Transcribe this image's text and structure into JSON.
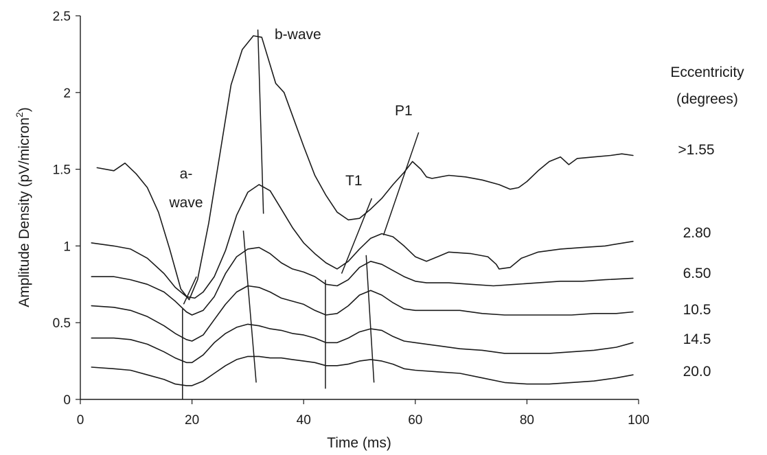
{
  "chart_data": {
    "type": "line",
    "xlabel": "Time (ms)",
    "ylabel_main": "Amplitude Density (pV/micron",
    "ylabel_sup": "2",
    "ylabel_end": ")",
    "xlim": [
      0,
      100
    ],
    "ylim": [
      0,
      2.5
    ],
    "x_ticks": [
      0,
      20,
      40,
      60,
      80,
      100
    ],
    "x_tick_labels": [
      "0",
      "20",
      "40",
      "60",
      "80",
      "100"
    ],
    "y_ticks": [
      0,
      0.5,
      1,
      1.5,
      2,
      2.5
    ],
    "y_tick_labels": [
      "0",
      "0.5",
      "1",
      "1.5",
      "2",
      "2.5"
    ],
    "grid": false,
    "legend_title": [
      "Eccentricity",
      "(degrees)"
    ],
    "annotations": {
      "a_wave": [
        "a-",
        "wave"
      ],
      "b_wave": "b-wave",
      "t1": "T1",
      "p1": "P1"
    },
    "series": [
      {
        "name": ">1.55",
        "points": [
          [
            3,
            1.51
          ],
          [
            6,
            1.49
          ],
          [
            8,
            1.54
          ],
          [
            10,
            1.47
          ],
          [
            12,
            1.38
          ],
          [
            14,
            1.22
          ],
          [
            16,
            0.98
          ],
          [
            18,
            0.72
          ],
          [
            19.5,
            0.65
          ],
          [
            21,
            0.78
          ],
          [
            23,
            1.15
          ],
          [
            25,
            1.6
          ],
          [
            27,
            2.05
          ],
          [
            29,
            2.28
          ],
          [
            31,
            2.37
          ],
          [
            32.5,
            2.36
          ],
          [
            34,
            2.18
          ],
          [
            35,
            2.06
          ],
          [
            36.5,
            2.0
          ],
          [
            38,
            1.85
          ],
          [
            40,
            1.65
          ],
          [
            42,
            1.46
          ],
          [
            44,
            1.33
          ],
          [
            46,
            1.22
          ],
          [
            48,
            1.17
          ],
          [
            50,
            1.18
          ],
          [
            52,
            1.24
          ],
          [
            54,
            1.31
          ],
          [
            56,
            1.4
          ],
          [
            58,
            1.48
          ],
          [
            59.5,
            1.55
          ],
          [
            61,
            1.5
          ],
          [
            62,
            1.45
          ],
          [
            63,
            1.44
          ],
          [
            66,
            1.46
          ],
          [
            69,
            1.45
          ],
          [
            72,
            1.43
          ],
          [
            75,
            1.4
          ],
          [
            77,
            1.37
          ],
          [
            78.5,
            1.38
          ],
          [
            80,
            1.42
          ],
          [
            82,
            1.49
          ],
          [
            84,
            1.55
          ],
          [
            86,
            1.58
          ],
          [
            87.5,
            1.53
          ],
          [
            89,
            1.57
          ],
          [
            92,
            1.58
          ],
          [
            95,
            1.59
          ],
          [
            97,
            1.6
          ],
          [
            99,
            1.59
          ]
        ]
      },
      {
        "name": "2.80",
        "points": [
          [
            2,
            1.02
          ],
          [
            6,
            1.0
          ],
          [
            9,
            0.98
          ],
          [
            12,
            0.92
          ],
          [
            15,
            0.82
          ],
          [
            17,
            0.73
          ],
          [
            19,
            0.67
          ],
          [
            20.5,
            0.66
          ],
          [
            22,
            0.7
          ],
          [
            24,
            0.8
          ],
          [
            26,
            0.97
          ],
          [
            28,
            1.2
          ],
          [
            30,
            1.35
          ],
          [
            32,
            1.4
          ],
          [
            34,
            1.36
          ],
          [
            36,
            1.24
          ],
          [
            38,
            1.12
          ],
          [
            40,
            1.02
          ],
          [
            42,
            0.95
          ],
          [
            44,
            0.89
          ],
          [
            46,
            0.85
          ],
          [
            48,
            0.9
          ],
          [
            50,
            0.98
          ],
          [
            52,
            1.05
          ],
          [
            54,
            1.08
          ],
          [
            56,
            1.06
          ],
          [
            58,
            1.0
          ],
          [
            60,
            0.93
          ],
          [
            62,
            0.9
          ],
          [
            64,
            0.93
          ],
          [
            66,
            0.96
          ],
          [
            70,
            0.95
          ],
          [
            73,
            0.93
          ],
          [
            74.5,
            0.88
          ],
          [
            75,
            0.85
          ],
          [
            77,
            0.86
          ],
          [
            79,
            0.92
          ],
          [
            82,
            0.96
          ],
          [
            86,
            0.98
          ],
          [
            90,
            0.99
          ],
          [
            94,
            1.0
          ],
          [
            99,
            1.03
          ]
        ]
      },
      {
        "name": "6.50",
        "points": [
          [
            2,
            0.8
          ],
          [
            6,
            0.8
          ],
          [
            9,
            0.78
          ],
          [
            12,
            0.75
          ],
          [
            15,
            0.7
          ],
          [
            17,
            0.64
          ],
          [
            19,
            0.57
          ],
          [
            20,
            0.55
          ],
          [
            22,
            0.58
          ],
          [
            24,
            0.67
          ],
          [
            26,
            0.82
          ],
          [
            28,
            0.93
          ],
          [
            30,
            0.98
          ],
          [
            32,
            0.99
          ],
          [
            34,
            0.95
          ],
          [
            36,
            0.89
          ],
          [
            38,
            0.85
          ],
          [
            40,
            0.83
          ],
          [
            42,
            0.8
          ],
          [
            44,
            0.75
          ],
          [
            46,
            0.74
          ],
          [
            48,
            0.78
          ],
          [
            50,
            0.86
          ],
          [
            52,
            0.9
          ],
          [
            54,
            0.88
          ],
          [
            56,
            0.84
          ],
          [
            58,
            0.8
          ],
          [
            60,
            0.77
          ],
          [
            62,
            0.76
          ],
          [
            66,
            0.76
          ],
          [
            70,
            0.75
          ],
          [
            74,
            0.74
          ],
          [
            78,
            0.75
          ],
          [
            82,
            0.76
          ],
          [
            86,
            0.77
          ],
          [
            90,
            0.77
          ],
          [
            94,
            0.78
          ],
          [
            99,
            0.79
          ]
        ]
      },
      {
        "name": "10.5",
        "points": [
          [
            2,
            0.61
          ],
          [
            6,
            0.6
          ],
          [
            9,
            0.58
          ],
          [
            12,
            0.54
          ],
          [
            15,
            0.48
          ],
          [
            17,
            0.43
          ],
          [
            19,
            0.39
          ],
          [
            20,
            0.38
          ],
          [
            22,
            0.42
          ],
          [
            24,
            0.52
          ],
          [
            26,
            0.62
          ],
          [
            28,
            0.7
          ],
          [
            30,
            0.74
          ],
          [
            32,
            0.73
          ],
          [
            34,
            0.7
          ],
          [
            36,
            0.66
          ],
          [
            38,
            0.64
          ],
          [
            40,
            0.62
          ],
          [
            42,
            0.58
          ],
          [
            44,
            0.55
          ],
          [
            46,
            0.56
          ],
          [
            48,
            0.61
          ],
          [
            50,
            0.68
          ],
          [
            52,
            0.71
          ],
          [
            54,
            0.68
          ],
          [
            56,
            0.63
          ],
          [
            58,
            0.59
          ],
          [
            60,
            0.58
          ],
          [
            64,
            0.58
          ],
          [
            68,
            0.58
          ],
          [
            72,
            0.56
          ],
          [
            76,
            0.55
          ],
          [
            80,
            0.55
          ],
          [
            84,
            0.55
          ],
          [
            88,
            0.55
          ],
          [
            92,
            0.56
          ],
          [
            96,
            0.56
          ],
          [
            99,
            0.57
          ]
        ]
      },
      {
        "name": "14.5",
        "points": [
          [
            2,
            0.4
          ],
          [
            6,
            0.4
          ],
          [
            9,
            0.39
          ],
          [
            12,
            0.36
          ],
          [
            15,
            0.31
          ],
          [
            17,
            0.27
          ],
          [
            19,
            0.24
          ],
          [
            20,
            0.24
          ],
          [
            22,
            0.29
          ],
          [
            24,
            0.37
          ],
          [
            26,
            0.43
          ],
          [
            28,
            0.47
          ],
          [
            30,
            0.49
          ],
          [
            32,
            0.48
          ],
          [
            34,
            0.46
          ],
          [
            36,
            0.45
          ],
          [
            38,
            0.43
          ],
          [
            40,
            0.42
          ],
          [
            42,
            0.4
          ],
          [
            44,
            0.37
          ],
          [
            46,
            0.37
          ],
          [
            48,
            0.4
          ],
          [
            50,
            0.44
          ],
          [
            52,
            0.46
          ],
          [
            54,
            0.45
          ],
          [
            56,
            0.41
          ],
          [
            58,
            0.38
          ],
          [
            60,
            0.37
          ],
          [
            64,
            0.35
          ],
          [
            68,
            0.33
          ],
          [
            72,
            0.32
          ],
          [
            76,
            0.3
          ],
          [
            80,
            0.3
          ],
          [
            84,
            0.3
          ],
          [
            88,
            0.31
          ],
          [
            92,
            0.32
          ],
          [
            96,
            0.34
          ],
          [
            99,
            0.37
          ]
        ]
      },
      {
        "name": "20.0",
        "points": [
          [
            2,
            0.21
          ],
          [
            6,
            0.2
          ],
          [
            9,
            0.19
          ],
          [
            12,
            0.16
          ],
          [
            15,
            0.13
          ],
          [
            17,
            0.1
          ],
          [
            19,
            0.09
          ],
          [
            20,
            0.09
          ],
          [
            22,
            0.12
          ],
          [
            24,
            0.17
          ],
          [
            26,
            0.22
          ],
          [
            28,
            0.26
          ],
          [
            30,
            0.28
          ],
          [
            32,
            0.28
          ],
          [
            34,
            0.27
          ],
          [
            36,
            0.27
          ],
          [
            38,
            0.26
          ],
          [
            40,
            0.25
          ],
          [
            42,
            0.24
          ],
          [
            44,
            0.22
          ],
          [
            46,
            0.22
          ],
          [
            48,
            0.23
          ],
          [
            50,
            0.25
          ],
          [
            52,
            0.26
          ],
          [
            54,
            0.25
          ],
          [
            56,
            0.23
          ],
          [
            58,
            0.2
          ],
          [
            60,
            0.19
          ],
          [
            64,
            0.18
          ],
          [
            68,
            0.17
          ],
          [
            72,
            0.14
          ],
          [
            76,
            0.11
          ],
          [
            80,
            0.1
          ],
          [
            84,
            0.1
          ],
          [
            88,
            0.11
          ],
          [
            92,
            0.12
          ],
          [
            96,
            0.14
          ],
          [
            99,
            0.16
          ]
        ]
      }
    ],
    "marker_lines": [
      {
        "name": "a-wave-line-top",
        "from": [
          18.5,
          0.62
        ],
        "to": [
          20.8,
          0.8
        ]
      },
      {
        "name": "a-wave-line",
        "from": [
          18.3,
          0.59
        ],
        "to": [
          18.3,
          0.0
        ]
      },
      {
        "name": "b-wave-line-top",
        "from": [
          31.8,
          2.41
        ],
        "to": [
          32.8,
          1.21
        ]
      },
      {
        "name": "b-wave-line",
        "from": [
          29.2,
          1.1
        ],
        "to": [
          31.5,
          0.11
        ]
      },
      {
        "name": "t1-line-top",
        "from": [
          46.8,
          0.82
        ],
        "to": [
          52.2,
          1.31
        ]
      },
      {
        "name": "t1-line",
        "from": [
          43.9,
          0.78
        ],
        "to": [
          43.9,
          0.07
        ]
      },
      {
        "name": "p1-line-top",
        "from": [
          54.3,
          1.07
        ],
        "to": [
          60.6,
          1.74
        ]
      },
      {
        "name": "p1-line",
        "from": [
          51.2,
          0.94
        ],
        "to": [
          52.6,
          0.11
        ]
      }
    ]
  }
}
